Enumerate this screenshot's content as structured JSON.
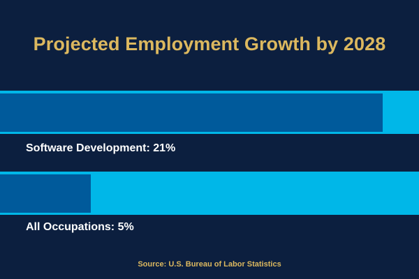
{
  "chart_data": {
    "type": "bar",
    "orientation": "horizontal",
    "title": "Projected Employment Growth by 2028",
    "categories": [
      "Software Development",
      "All Occupations"
    ],
    "values": [
      21,
      5
    ],
    "value_unit": "%",
    "labels": [
      "Software Development: 21%",
      "All Occupations: 5%"
    ],
    "xlim": [
      0,
      23
    ],
    "source": "Source: U.S. Bureau of Labor Statistics"
  },
  "colors": {
    "background": "#0c1f3f",
    "track": "#00b7e8",
    "fill": "#005a9b",
    "title": "#dcb85f",
    "label": "#ffffff"
  }
}
